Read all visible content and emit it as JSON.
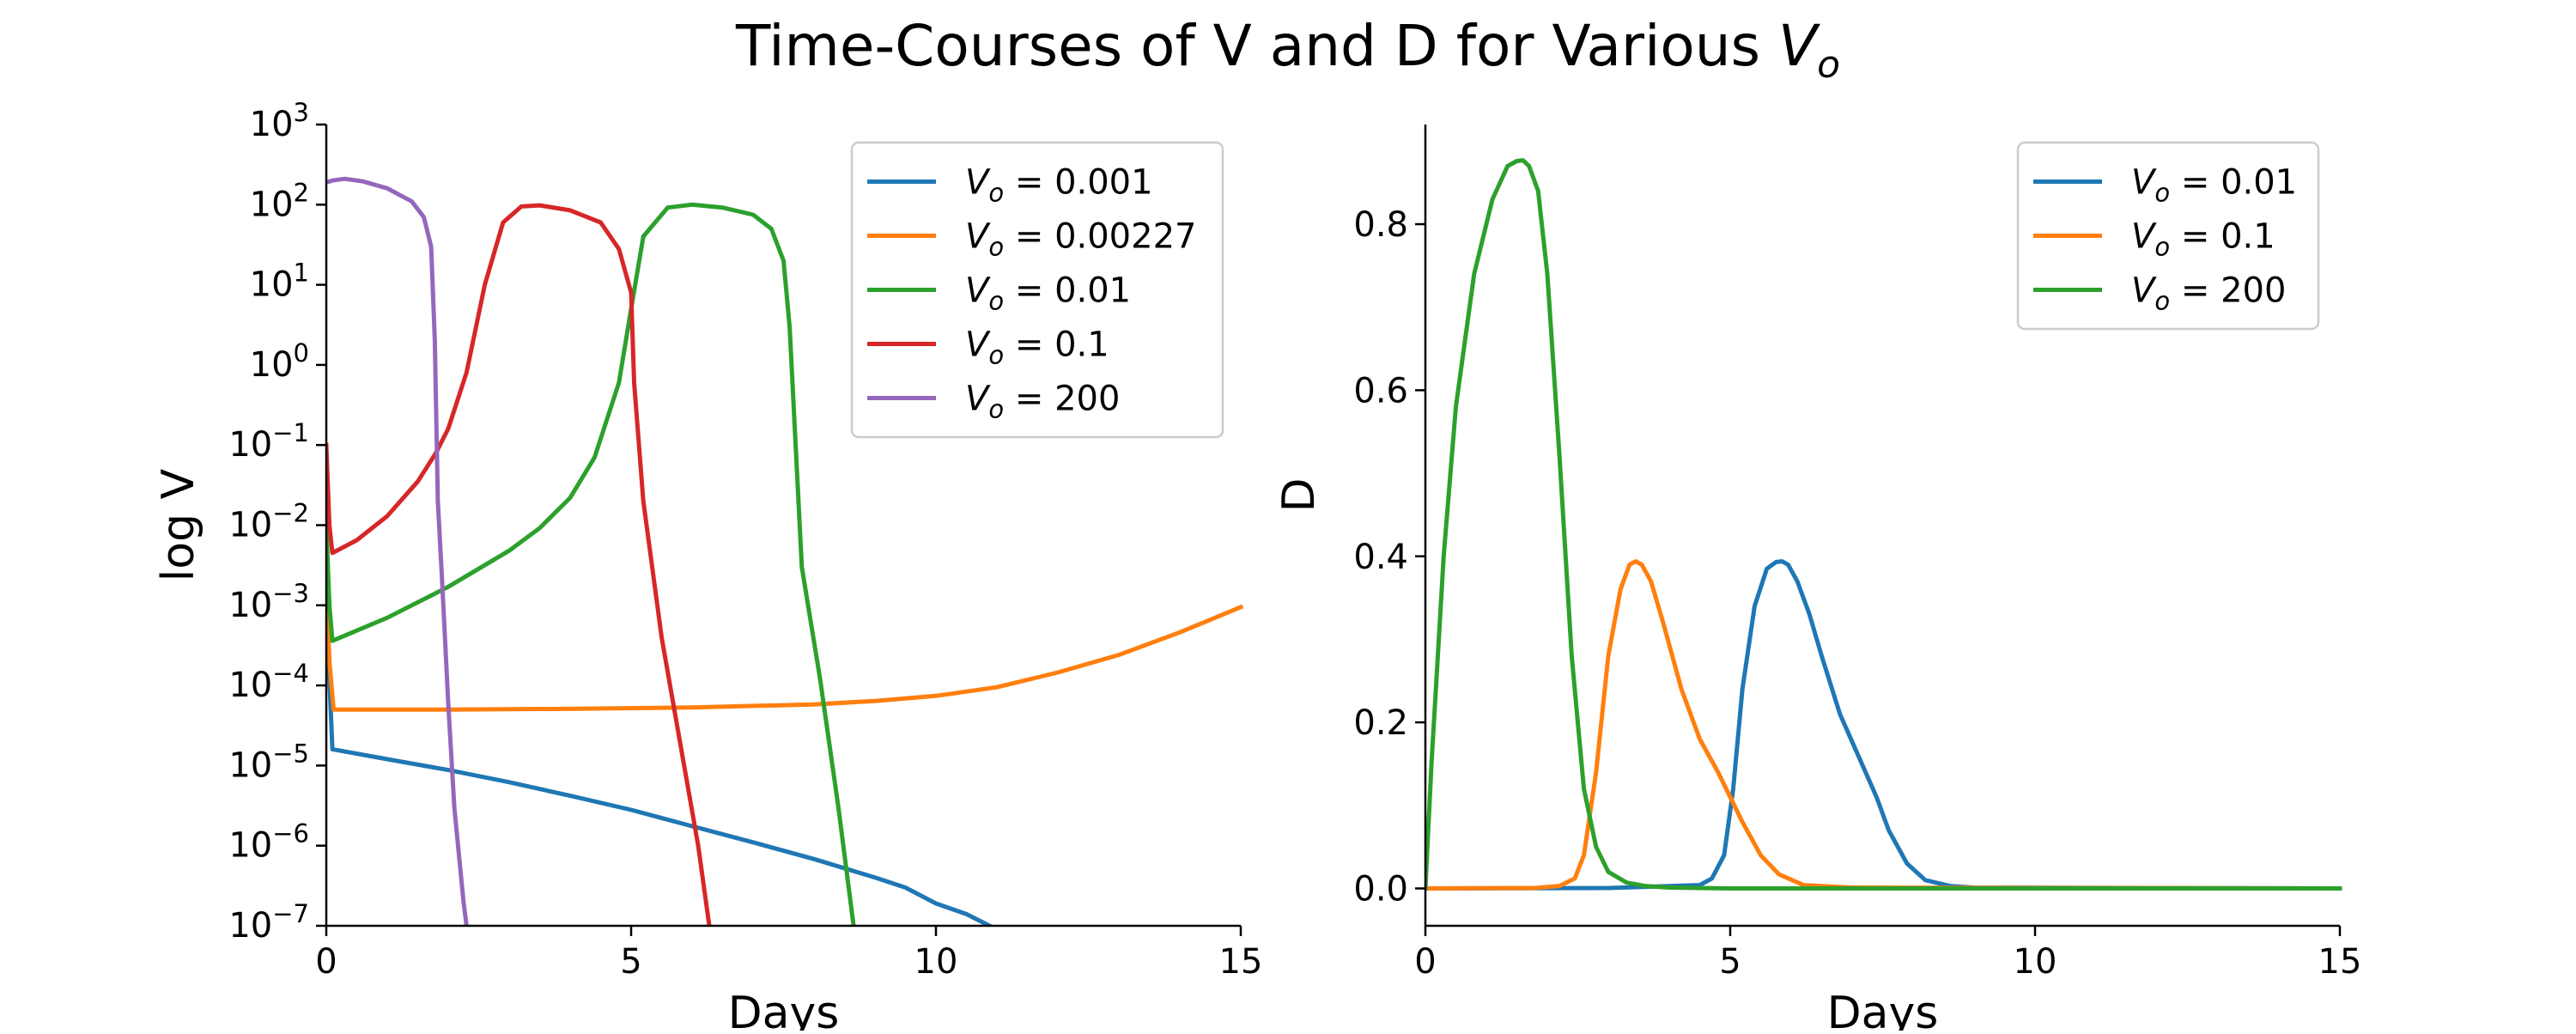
{
  "figure": {
    "title_prefix": "Time-Courses of V and D for Various ",
    "title_var": "V",
    "title_sub": "o"
  },
  "chart_data": [
    {
      "type": "line",
      "name": "left-panel",
      "xlabel": "Days",
      "ylabel": "log V",
      "xlim": [
        0,
        15
      ],
      "ylim": [
        1e-07,
        1000
      ],
      "yscale": "log",
      "xticks": [
        0,
        5,
        10,
        15
      ],
      "xtick_labels": [
        "0",
        "5",
        "10",
        "15"
      ],
      "yticks": [
        1e-07,
        1e-06,
        1e-05,
        0.0001,
        0.001,
        0.01,
        0.1,
        1,
        10,
        100,
        1000
      ],
      "ytick_labels": [
        {
          "base": "10",
          "exp": "−7"
        },
        {
          "base": "10",
          "exp": "−6"
        },
        {
          "base": "10",
          "exp": "−5"
        },
        {
          "base": "10",
          "exp": "−4"
        },
        {
          "base": "10",
          "exp": "−3"
        },
        {
          "base": "10",
          "exp": "−2"
        },
        {
          "base": "10",
          "exp": "−1"
        },
        {
          "base": "10",
          "exp": "0"
        },
        {
          "base": "10",
          "exp": "1"
        },
        {
          "base": "10",
          "exp": "2"
        },
        {
          "base": "10",
          "exp": "3"
        }
      ],
      "grid": false,
      "legend_position": "top-right",
      "series": [
        {
          "name": "0.001",
          "color": "#1f77b4",
          "x": [
            0,
            0.1,
            1,
            2,
            3,
            4,
            5,
            6,
            7,
            8,
            9,
            9.5,
            10,
            10.5,
            11
          ],
          "y": [
            0.001,
            1.6e-05,
            1.2e-05,
            8.8e-06,
            6.2e-06,
            4.2e-06,
            2.8e-06,
            1.75e-06,
            1.1e-06,
            6.8e-07,
            4e-07,
            3e-07,
            1.9e-07,
            1.4e-07,
            9e-08
          ]
        },
        {
          "name": "0.00227",
          "color": "#ff7f0e",
          "x": [
            0,
            0.05,
            0.12,
            2,
            4,
            6,
            8,
            9,
            10,
            11,
            12,
            13,
            14,
            15
          ],
          "y": [
            0.00227,
            0.0002,
            5e-05,
            5e-05,
            5.1e-05,
            5.3e-05,
            5.8e-05,
            6.4e-05,
            7.4e-05,
            9.5e-05,
            0.000145,
            0.00024,
            0.00046,
            0.00095
          ]
        },
        {
          "name": "0.01",
          "color": "#2ca02c",
          "x": [
            0,
            0.05,
            0.1,
            1,
            2,
            3,
            3.5,
            4,
            4.4,
            4.8,
            5,
            5.2,
            5.6,
            6,
            6.5,
            7,
            7.3,
            7.5,
            7.6,
            7.8,
            8.1,
            8.4,
            8.7
          ],
          "y": [
            0.01,
            0.001,
            0.00036,
            0.0007,
            0.0017,
            0.0048,
            0.0092,
            0.022,
            0.07,
            0.6,
            5,
            40,
            92,
            100,
            92,
            75,
            50,
            20,
            3,
            0.003,
            0.00012,
            3e-06,
            5e-08
          ]
        },
        {
          "name": "0.1",
          "color": "#d62728",
          "x": [
            0,
            0.05,
            0.1,
            0.5,
            1,
            1.5,
            1.8,
            2,
            2.3,
            2.6,
            2.9,
            3.2,
            3.5,
            4,
            4.5,
            4.8,
            5,
            5.05,
            5.2,
            5.5,
            5.8,
            6.1,
            6.3
          ],
          "y": [
            0.1,
            0.01,
            0.0045,
            0.0065,
            0.013,
            0.035,
            0.08,
            0.16,
            0.8,
            10,
            60,
            95,
            98,
            85,
            60,
            28,
            8,
            0.6,
            0.02,
            0.0004,
            2e-05,
            1e-06,
            8e-08
          ]
        },
        {
          "name": "200",
          "color": "#9467bd",
          "x": [
            0,
            0.1,
            0.3,
            0.6,
            1,
            1.4,
            1.6,
            1.72,
            1.78,
            1.83,
            1.9,
            2,
            2.1,
            2.25,
            2.35
          ],
          "y": [
            190,
            200,
            210,
            195,
            160,
            110,
            70,
            30,
            2,
            0.02,
            0.002,
            6e-05,
            3e-06,
            2e-07,
            5e-08
          ]
        }
      ]
    },
    {
      "type": "line",
      "name": "right-panel",
      "xlabel": "Days",
      "ylabel": "D",
      "xlim": [
        0,
        15
      ],
      "ylim": [
        -0.045,
        0.92
      ],
      "xticks": [
        0,
        5,
        10,
        15
      ],
      "xtick_labels": [
        "0",
        "5",
        "10",
        "15"
      ],
      "yticks": [
        0,
        0.2,
        0.4,
        0.6,
        0.8
      ],
      "ytick_labels": [
        "0.0",
        "0.2",
        "0.4",
        "0.6",
        "0.8"
      ],
      "grid": false,
      "legend_position": "top-right",
      "series": [
        {
          "name": "0.01",
          "color": "#1f77b4",
          "x": [
            0,
            3,
            4.5,
            4.7,
            4.9,
            5.05,
            5.2,
            5.4,
            5.6,
            5.75,
            5.85,
            5.95,
            6.1,
            6.3,
            6.5,
            6.8,
            7.1,
            7.4,
            7.6,
            7.9,
            8.2,
            8.6,
            9,
            15
          ],
          "y": [
            0,
            0.0005,
            0.004,
            0.012,
            0.04,
            0.12,
            0.24,
            0.34,
            0.385,
            0.393,
            0.394,
            0.39,
            0.37,
            0.33,
            0.28,
            0.21,
            0.16,
            0.11,
            0.07,
            0.03,
            0.01,
            0.003,
            0.001,
            0
          ]
        },
        {
          "name": "0.1",
          "color": "#ff7f0e",
          "x": [
            0,
            1.8,
            2.2,
            2.45,
            2.6,
            2.8,
            3,
            3.2,
            3.35,
            3.45,
            3.55,
            3.7,
            3.9,
            4.2,
            4.5,
            4.8,
            5,
            5.2,
            5.5,
            5.8,
            6.2,
            7,
            15
          ],
          "y": [
            0,
            0.0005,
            0.003,
            0.012,
            0.04,
            0.14,
            0.28,
            0.36,
            0.39,
            0.394,
            0.39,
            0.37,
            0.32,
            0.24,
            0.18,
            0.14,
            0.11,
            0.08,
            0.04,
            0.017,
            0.004,
            0.001,
            0
          ]
        },
        {
          "name": "200",
          "color": "#2ca02c",
          "x": [
            0,
            0.1,
            0.3,
            0.5,
            0.8,
            1.1,
            1.35,
            1.5,
            1.6,
            1.7,
            1.85,
            2,
            2.2,
            2.4,
            2.6,
            2.8,
            3,
            3.3,
            3.6,
            4,
            5,
            15
          ],
          "y": [
            0,
            0.15,
            0.4,
            0.58,
            0.74,
            0.83,
            0.87,
            0.876,
            0.877,
            0.87,
            0.84,
            0.74,
            0.52,
            0.28,
            0.12,
            0.05,
            0.02,
            0.007,
            0.003,
            0.001,
            0,
            0
          ]
        }
      ]
    }
  ]
}
